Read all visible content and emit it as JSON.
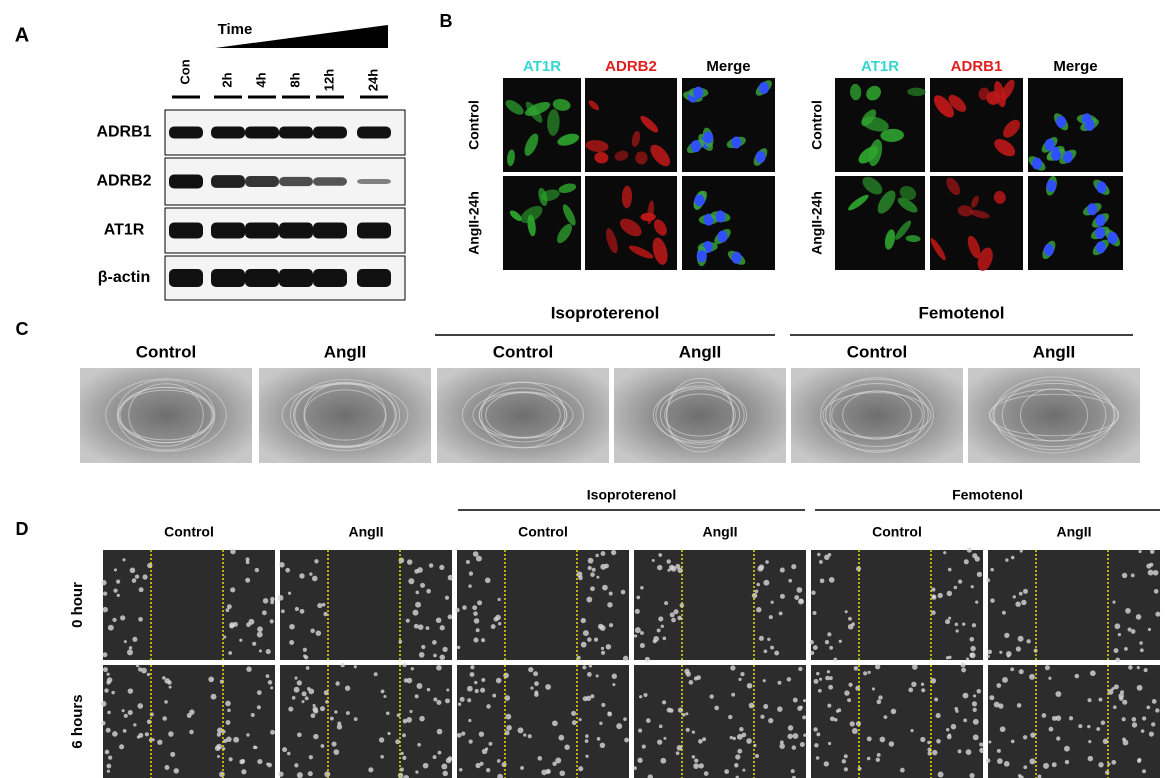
{
  "panel_a": {
    "label": "A",
    "time_label": "Time",
    "lanes": [
      "Con",
      "2h",
      "4h",
      "8h",
      "12h",
      "24h"
    ],
    "rows": [
      "ADRB1",
      "ADRB2",
      "AT1R",
      "β-actin"
    ]
  },
  "panel_b": {
    "label": "B",
    "groups": [
      {
        "columns": [
          "AT1R",
          "ADRB2",
          "Merge"
        ],
        "rows": [
          "Control",
          "AngII-24h"
        ]
      },
      {
        "columns": [
          "AT1R",
          "ADRB1",
          "Merge"
        ],
        "rows": [
          "Control",
          "AngII-24h"
        ]
      }
    ]
  },
  "panel_c": {
    "label": "C",
    "groups": [
      "Isoproterenol",
      "Femotenol"
    ],
    "columns": [
      "Control",
      "AngII",
      "Control",
      "AngII",
      "Control",
      "AngII"
    ]
  },
  "panel_d": {
    "label": "D",
    "groups": [
      "Isoproterenol",
      "Femotenol"
    ],
    "columns": [
      "Control",
      "AngII",
      "Control",
      "AngII",
      "Control",
      "AngII"
    ],
    "rows": [
      "0 hour",
      "6 hours"
    ]
  }
}
